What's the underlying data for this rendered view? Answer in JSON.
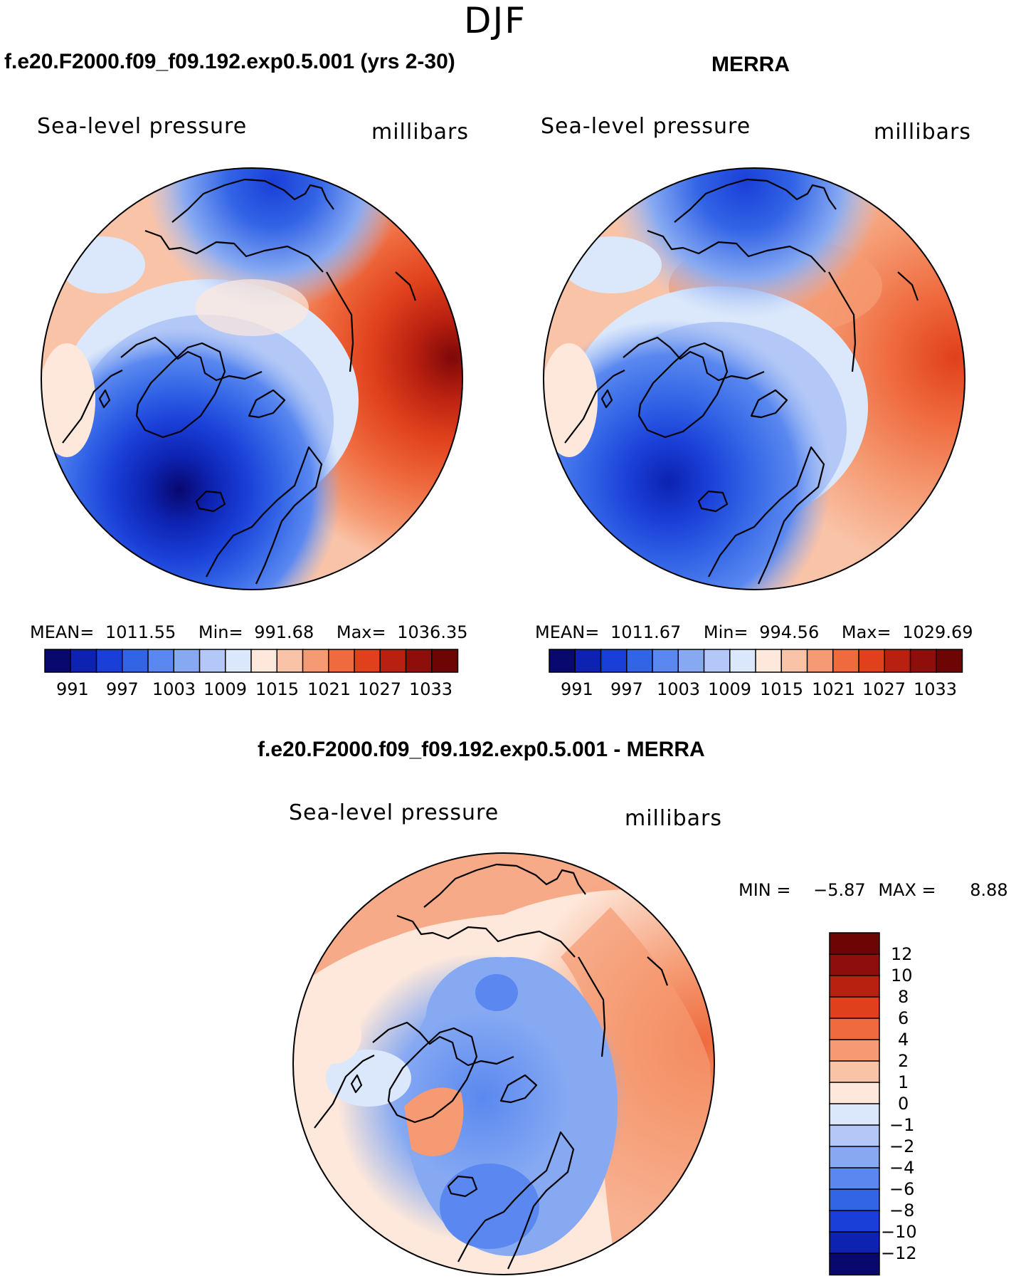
{
  "season": "DJF",
  "colors": {
    "scale14": [
      "#08086e",
      "#0d22b0",
      "#1a3fd8",
      "#3264e6",
      "#5a88f0",
      "#86a9f2",
      "#b3c8f6",
      "#dbe8fb",
      "#fde8db",
      "#f9c3a8",
      "#f59a72",
      "#ef6a3e",
      "#e0401c",
      "#b82010",
      "#7e0808"
    ],
    "scale16": [
      "#08086e",
      "#0d22b0",
      "#1a3fd8",
      "#3264e6",
      "#5a88f0",
      "#86a9f2",
      "#b3c8f6",
      "#dbe8fb",
      "#fde8db",
      "#f9c3a8",
      "#f59a72",
      "#ef6a3e",
      "#e0401c",
      "#b82010",
      "#8e0e0c",
      "#6e0505"
    ]
  },
  "panels": [
    {
      "title": "f.e20.F2000.f09_f09.192.exp0.5.001 (yrs 2-30)",
      "variable": "Sea-level pressure",
      "units": "millibars",
      "mean_label": "MEAN=",
      "mean": "1011.55",
      "min_label": "Min=",
      "min": "991.68",
      "max_label": "Max=",
      "max": "1036.35",
      "colorbar_labels": [
        "991",
        "997",
        "1003",
        "1009",
        "1015",
        "1021",
        "1027",
        "1033"
      ]
    },
    {
      "title": "MERRA",
      "variable": "Sea-level pressure",
      "units": "millibars",
      "mean_label": "MEAN=",
      "mean": "1011.67",
      "min_label": "Min=",
      "min": "994.56",
      "max_label": "Max=",
      "max": "1029.69",
      "colorbar_labels": [
        "991",
        "997",
        "1003",
        "1009",
        "1015",
        "1021",
        "1027",
        "1033"
      ]
    }
  ],
  "diff": {
    "title": "f.e20.F2000.f09_f09.192.exp0.5.001 - MERRA",
    "variable": "Sea-level pressure",
    "units": "millibars",
    "min_label": "MIN =",
    "min": "−5.87",
    "max_label": "MAX =",
    "max": "8.88",
    "colorbar_labels": [
      "12",
      "10",
      "8",
      "6",
      "4",
      "2",
      "1",
      "0",
      "−1",
      "−2",
      "−4",
      "−6",
      "−8",
      "−10",
      "−12"
    ]
  }
}
